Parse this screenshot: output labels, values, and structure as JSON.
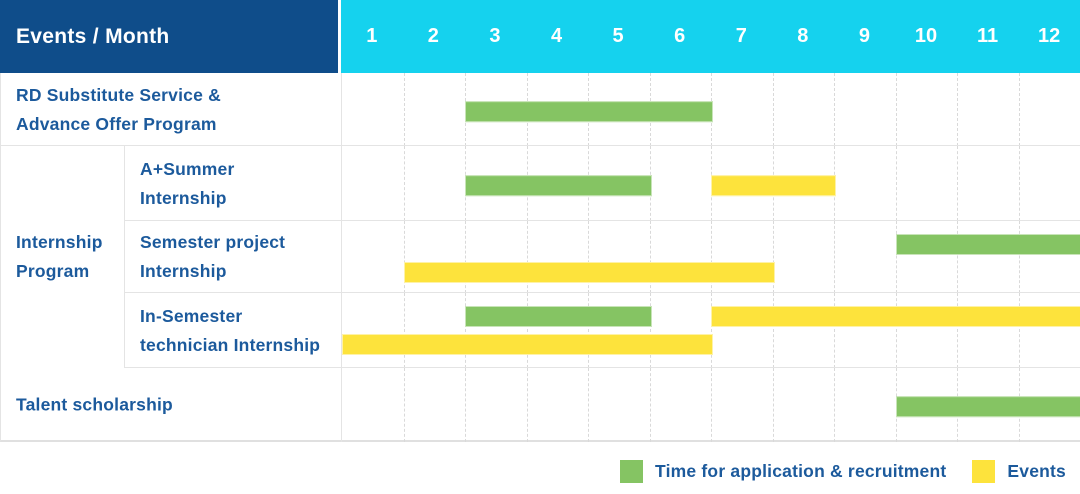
{
  "colors": {
    "header_bg": "#0f4d8a",
    "months_bg": "#15d2ee",
    "green": "#85c463",
    "yellow": "#fde33c",
    "text_blue": "#1c5a9c"
  },
  "header": {
    "label": "Events / Month",
    "months": [
      "1",
      "2",
      "3",
      "4",
      "5",
      "6",
      "7",
      "8",
      "9",
      "10",
      "11",
      "12"
    ]
  },
  "group": {
    "label_lines": [
      "Internship",
      "Program"
    ]
  },
  "rows": [
    {
      "label_lines": [
        "RD Substitute Service &",
        "Advance Offer Program"
      ],
      "group": "",
      "bars": [
        {
          "color": "green",
          "start": 3,
          "end": 6,
          "line": 0
        }
      ]
    },
    {
      "label_lines": [
        "A+Summer",
        "Internship"
      ],
      "group": "Internship Program",
      "bars": [
        {
          "color": "green",
          "start": 3,
          "end": 5,
          "line": 0
        },
        {
          "color": "yellow",
          "start": 7,
          "end": 8,
          "line": 0
        }
      ]
    },
    {
      "label_lines": [
        "Semester project",
        "Internship"
      ],
      "group": "Internship Program",
      "bars": [
        {
          "color": "green",
          "start": 10,
          "end": 12,
          "line": 1
        },
        {
          "color": "yellow",
          "start": 2,
          "end": 7,
          "line": 2
        }
      ]
    },
    {
      "label_lines": [
        "In-Semester",
        "technician Internship"
      ],
      "group": "Internship Program",
      "bars": [
        {
          "color": "green",
          "start": 3,
          "end": 5,
          "line": 1
        },
        {
          "color": "yellow",
          "start": 7,
          "end": 12,
          "line": 1
        },
        {
          "color": "yellow",
          "start": 1,
          "end": 6,
          "line": 2
        }
      ]
    },
    {
      "label_lines": [
        "Talent scholarship"
      ],
      "group": "",
      "bars": [
        {
          "color": "green",
          "start": 10,
          "end": 12,
          "line": 0
        }
      ]
    }
  ],
  "legend": {
    "items": [
      {
        "color": "green",
        "label": "Time for application & recruitment"
      },
      {
        "color": "yellow",
        "label": "Events"
      }
    ]
  },
  "chart_data": {
    "type": "bar",
    "variant": "gantt-timeline",
    "title": "Events / Month",
    "x": {
      "label": "Month",
      "ticks": [
        1,
        2,
        3,
        4,
        5,
        6,
        7,
        8,
        9,
        10,
        11,
        12
      ],
      "range": [
        1,
        12
      ]
    },
    "grid": "vertical-dashed",
    "legend_position": "bottom-right",
    "categories": [
      "RD Substitute Service & Advance Offer Program",
      "Internship Program / A+Summer Internship",
      "Internship Program / Semester project Internship",
      "Internship Program / In-Semester technician Internship",
      "Talent scholarship"
    ],
    "series": [
      {
        "name": "Time for application & recruitment",
        "color": "#85c463",
        "spans": [
          {
            "task": "RD Substitute Service & Advance Offer Program",
            "months": [
              3,
              6
            ]
          },
          {
            "task": "A+Summer Internship",
            "months": [
              3,
              5
            ]
          },
          {
            "task": "Semester project Internship",
            "months": [
              10,
              12
            ]
          },
          {
            "task": "In-Semester technician Internship",
            "months": [
              3,
              5
            ]
          },
          {
            "task": "Talent scholarship",
            "months": [
              10,
              12
            ]
          }
        ]
      },
      {
        "name": "Events",
        "color": "#fde33c",
        "spans": [
          {
            "task": "A+Summer Internship",
            "months": [
              7,
              8
            ]
          },
          {
            "task": "Semester project Internship",
            "months": [
              2,
              7
            ]
          },
          {
            "task": "In-Semester technician Internship",
            "months": [
              7,
              12
            ]
          },
          {
            "task": "In-Semester technician Internship",
            "months": [
              1,
              6
            ]
          }
        ]
      }
    ]
  }
}
